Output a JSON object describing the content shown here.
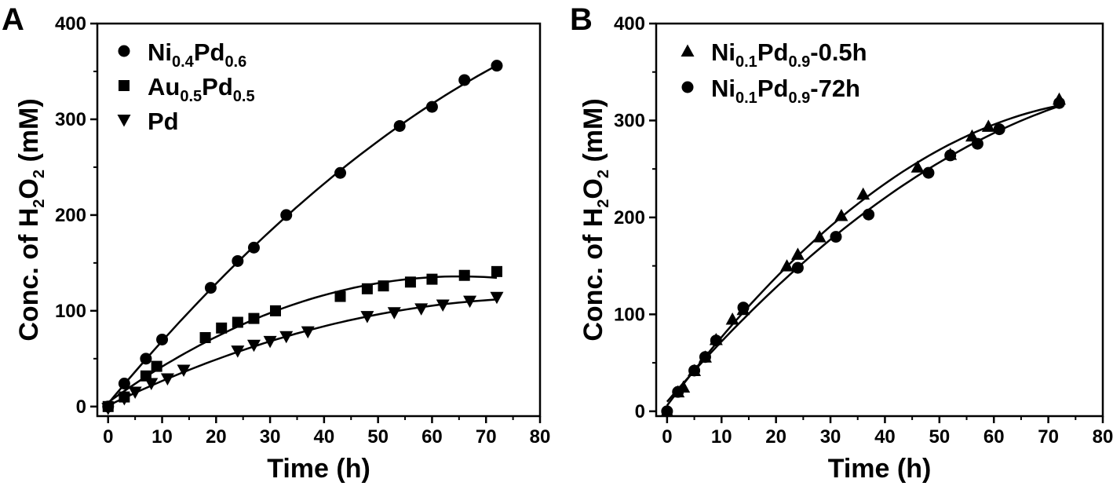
{
  "chart_data": [
    {
      "panel": "A",
      "type": "scatter",
      "xlabel": "Time (h)",
      "ylabel": "Conc. of H2O2 (mM)",
      "xlim": [
        -2,
        80
      ],
      "ylim": [
        -10,
        400
      ],
      "xticks": [
        0,
        10,
        20,
        30,
        40,
        50,
        60,
        70,
        80
      ],
      "yticks": [
        0,
        100,
        200,
        300,
        400
      ],
      "legend_position": "top-left",
      "fit_curves": true,
      "series": [
        {
          "name": "Ni0.4Pd0.6",
          "marker": "circle",
          "x": [
            0,
            3,
            7,
            10,
            19,
            24,
            27,
            33,
            43,
            54,
            60,
            66,
            72
          ],
          "y": [
            0,
            24,
            50,
            70,
            124,
            152,
            166,
            200,
            244,
            293,
            313,
            341,
            356
          ]
        },
        {
          "name": "Au0.5Pd0.5",
          "marker": "square",
          "x": [
            0,
            3,
            7,
            9,
            18,
            21,
            24,
            27,
            31,
            43,
            48,
            51,
            56,
            60,
            66,
            72
          ],
          "y": [
            0,
            10,
            32,
            42,
            72,
            82,
            88,
            92,
            100,
            115,
            123,
            126,
            130,
            133,
            137,
            141
          ]
        },
        {
          "name": "Pd",
          "marker": "triangle-down",
          "x": [
            0,
            3,
            5,
            8,
            11,
            14,
            24,
            27,
            30,
            33,
            37,
            48,
            53,
            58,
            62,
            67,
            72
          ],
          "y": [
            -2,
            8,
            15,
            24,
            29,
            38,
            58,
            64,
            68,
            73,
            78,
            94,
            98,
            102,
            106,
            110,
            114
          ]
        }
      ],
      "legend": [
        {
          "marker": "circle",
          "base": [
            "Ni",
            "Pd"
          ],
          "subs": [
            "0.4",
            "0.6"
          ],
          "suffix": ""
        },
        {
          "marker": "square",
          "base": [
            "Au",
            "Pd"
          ],
          "subs": [
            "0.5",
            "0.5"
          ],
          "suffix": ""
        },
        {
          "marker": "triangle-down",
          "base": [
            "Pd"
          ],
          "subs": [
            ""
          ],
          "suffix": ""
        }
      ]
    },
    {
      "panel": "B",
      "type": "scatter",
      "xlabel": "Time (h)",
      "ylabel": "Conc. of H2O2 (mM)",
      "xlim": [
        -2,
        80
      ],
      "ylim": [
        -5,
        400
      ],
      "xticks": [
        0,
        10,
        20,
        30,
        40,
        50,
        60,
        70,
        80
      ],
      "yticks": [
        0,
        100,
        200,
        300,
        400
      ],
      "legend_position": "top-left",
      "fit_curves": true,
      "series": [
        {
          "name": "Ni0.1Pd0.9-0.5h",
          "marker": "triangle-up",
          "x": [
            0,
            2,
            3,
            5,
            7,
            9,
            12,
            14,
            22,
            24,
            28,
            32,
            36,
            46,
            52,
            56,
            59,
            72
          ],
          "y": [
            0,
            20,
            25,
            42,
            56,
            74,
            95,
            105,
            150,
            162,
            180,
            202,
            224,
            252,
            265,
            284,
            294,
            322
          ]
        },
        {
          "name": "Ni0.1Pd0.9-72h",
          "marker": "circle",
          "x": [
            0,
            2,
            5,
            7,
            9,
            14,
            24,
            31,
            37,
            48,
            52,
            57,
            61,
            72
          ],
          "y": [
            0,
            20,
            42,
            56,
            73,
            107,
            148,
            180,
            203,
            246,
            264,
            276,
            291,
            318
          ]
        }
      ],
      "legend": [
        {
          "marker": "triangle-up",
          "base": [
            "Ni",
            "Pd"
          ],
          "subs": [
            "0.1",
            "0.9"
          ],
          "suffix": "-0.5h"
        },
        {
          "marker": "circle",
          "base": [
            "Ni",
            "Pd"
          ],
          "subs": [
            "0.1",
            "0.9"
          ],
          "suffix": "-72h"
        }
      ]
    }
  ]
}
